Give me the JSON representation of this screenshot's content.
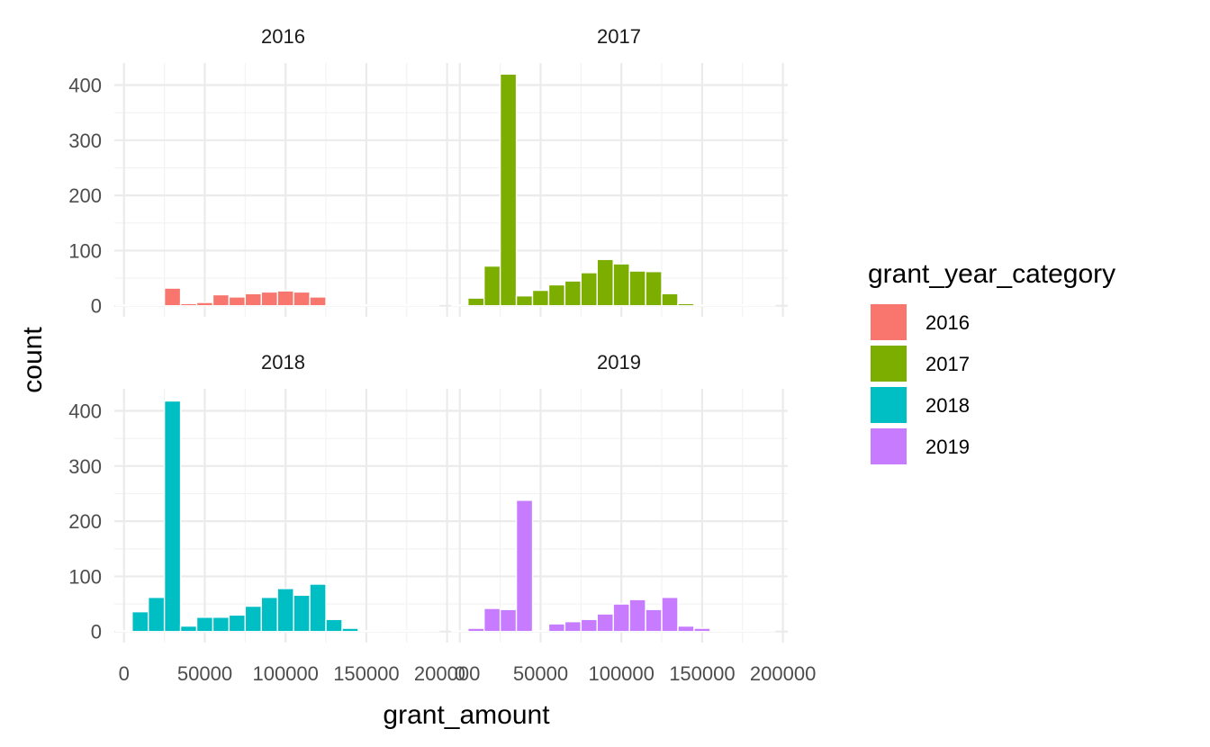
{
  "chart_data": {
    "type": "bar",
    "xlabel": "grant_amount",
    "ylabel": "count",
    "xlim": [
      -6000,
      203000
    ],
    "ylim": [
      -20,
      440
    ],
    "x_ticks": [
      0,
      50000,
      100000,
      150000,
      200000
    ],
    "x_tick_labels": [
      "0",
      "50000",
      "100000",
      "150000",
      "200000"
    ],
    "y_ticks": [
      0,
      100,
      200,
      300,
      400
    ],
    "y_tick_labels": [
      "0",
      "100",
      "200",
      "300",
      "400"
    ],
    "bin_width": 10000,
    "bin_centers": [
      0,
      10000,
      20000,
      30000,
      40000,
      50000,
      60000,
      70000,
      80000,
      90000,
      100000,
      110000,
      120000,
      130000,
      140000,
      150000,
      160000,
      170000,
      180000,
      190000
    ],
    "legend_position": "right",
    "legend": {
      "title": "grant_year_category",
      "entries": [
        {
          "label": "2016",
          "color": "#F8766D"
        },
        {
          "label": "2017",
          "color": "#7CAE00"
        },
        {
          "label": "2018",
          "color": "#00BFC4"
        },
        {
          "label": "2019",
          "color": "#C77CFF"
        }
      ]
    },
    "series": [
      {
        "name": "2016",
        "color": "#F8766D",
        "values": [
          0,
          0,
          0,
          32,
          4,
          6,
          20,
          16,
          22,
          25,
          27,
          25,
          16,
          0,
          0,
          0,
          0,
          0,
          0,
          0
        ]
      },
      {
        "name": "2017",
        "color": "#7CAE00",
        "values": [
          0,
          14,
          72,
          420,
          18,
          28,
          38,
          45,
          60,
          84,
          76,
          63,
          62,
          22,
          4,
          0,
          0,
          0,
          0,
          0
        ]
      },
      {
        "name": "2018",
        "color": "#00BFC4",
        "values": [
          0,
          36,
          62,
          418,
          10,
          26,
          26,
          30,
          46,
          62,
          78,
          66,
          86,
          22,
          6,
          0,
          0,
          0,
          0,
          0
        ]
      },
      {
        "name": "2019",
        "color": "#C77CFF",
        "values": [
          0,
          6,
          42,
          40,
          238,
          0,
          14,
          18,
          22,
          32,
          50,
          58,
          40,
          62,
          10,
          6,
          0,
          0,
          0,
          0
        ]
      }
    ],
    "grid": true
  }
}
